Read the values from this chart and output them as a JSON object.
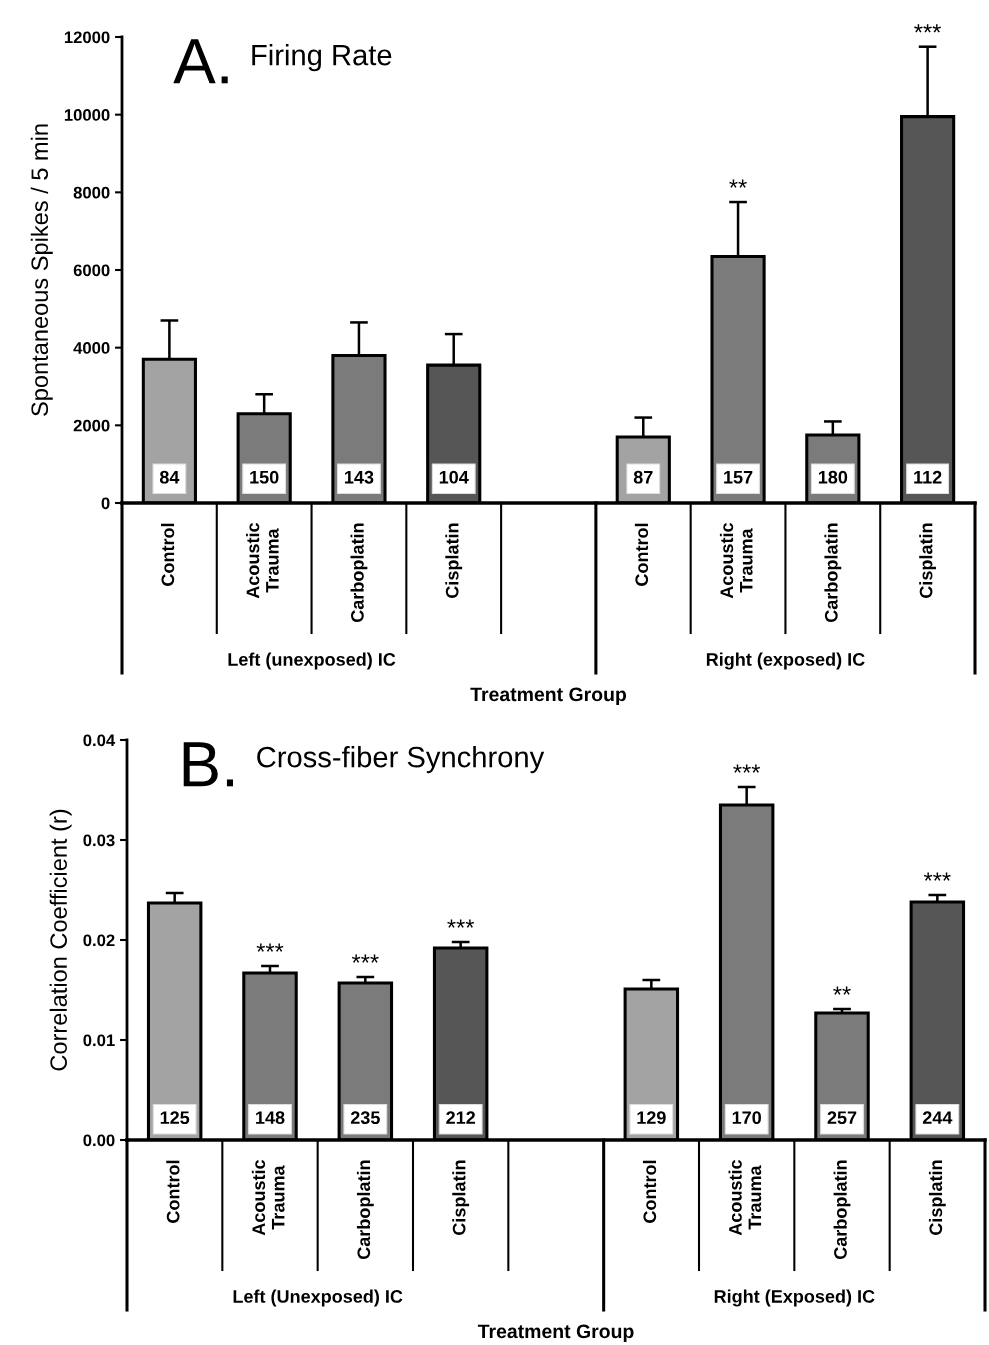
{
  "chart_data": [
    {
      "type": "bar",
      "title": "A. Firing Rate",
      "ylabel": "Spontaneous Spikes / 5 min",
      "xlabel": "Treatment Group",
      "categories": [
        "Control",
        "Acoustic\nTrauma",
        "Carboplatin",
        "Cisplatin",
        null,
        "Control",
        "Acoustic\nTrauma",
        "Carboplatin",
        "Cisplatin"
      ],
      "values": [
        3700,
        2300,
        3800,
        3550,
        null,
        1700,
        6350,
        1750,
        9950
      ],
      "errors": [
        [
          3700,
          4700
        ],
        [
          2300,
          2800
        ],
        [
          3800,
          4650
        ],
        [
          3550,
          4350
        ],
        null,
        [
          1700,
          2200
        ],
        [
          6350,
          7750
        ],
        [
          1750,
          2100
        ],
        [
          9950,
          11750
        ]
      ],
      "colors": [
        "#a3a3a3",
        "#7b7b7b",
        "#7b7b7b",
        "#565656",
        "#ffffff",
        "#a3a3a3",
        "#7b7b7b",
        "#7b7b7b",
        "#565656"
      ],
      "ylim": [
        0,
        12000
      ],
      "yticks": [
        0,
        2000,
        4000,
        6000,
        8000,
        10000,
        12000
      ],
      "grid": false,
      "legend": false,
      "annotations": [
        "Left (unexposed) IC",
        "Right (exposed) IC",
        "84",
        "150",
        "143",
        "104",
        "87",
        "157",
        "180",
        "112",
        "**",
        "***"
      ]
    },
    {
      "type": "bar",
      "title": "B. Cross-fiber Synchrony",
      "ylabel": "Correlation Coefficient (r)",
      "xlabel": "Treatment Group",
      "categories": [
        "Control",
        "Acoustic\nTrauma",
        "Carboplatin",
        "Cisplatin",
        null,
        "Control",
        "Acoustic\nTrauma",
        "Carboplatin",
        "Cisplatin"
      ],
      "values": [
        0.0237,
        0.0167,
        0.0157,
        0.0192,
        null,
        0.0151,
        0.0335,
        0.0127,
        0.0238
      ],
      "errors": [
        [
          0.0237,
          0.0247
        ],
        [
          0.0167,
          0.0174
        ],
        [
          0.0157,
          0.0163
        ],
        [
          0.0192,
          0.0198
        ],
        null,
        [
          0.0151,
          0.016
        ],
        [
          0.0335,
          0.0353
        ],
        [
          0.0127,
          0.0131
        ],
        [
          0.0238,
          0.0245
        ]
      ],
      "colors": [
        "#a3a3a3",
        "#7b7b7b",
        "#7b7b7b",
        "#565656",
        "#ffffff",
        "#a3a3a3",
        "#7b7b7b",
        "#7b7b7b",
        "#565656"
      ],
      "ylim": [
        0,
        0.04
      ],
      "yticks": [
        {
          "value": 0,
          "label": "0.00"
        },
        {
          "value": 0.01,
          "label": "0.01"
        },
        {
          "value": 0.02,
          "label": "0.02"
        },
        {
          "value": 0.03,
          "label": "0.03"
        },
        {
          "value": 0.04,
          "label": "0.04"
        }
      ],
      "grid": false,
      "legend": false,
      "annotations": [
        "Left (Unexposed) IC",
        "Right (Exposed) IC",
        "125",
        "148",
        "235",
        "212",
        "129",
        "170",
        "257",
        "244",
        {
          "text": "***",
          "x": "Acoustic\nTrauma",
          "y": 0.0174
        },
        {
          "text": "***",
          "x": "Carboplatin",
          "y": 0.0163
        },
        {
          "text": "***",
          "x": "Cisplatin",
          "y": 0.0198
        },
        "***",
        "**",
        "***"
      ]
    }
  ]
}
